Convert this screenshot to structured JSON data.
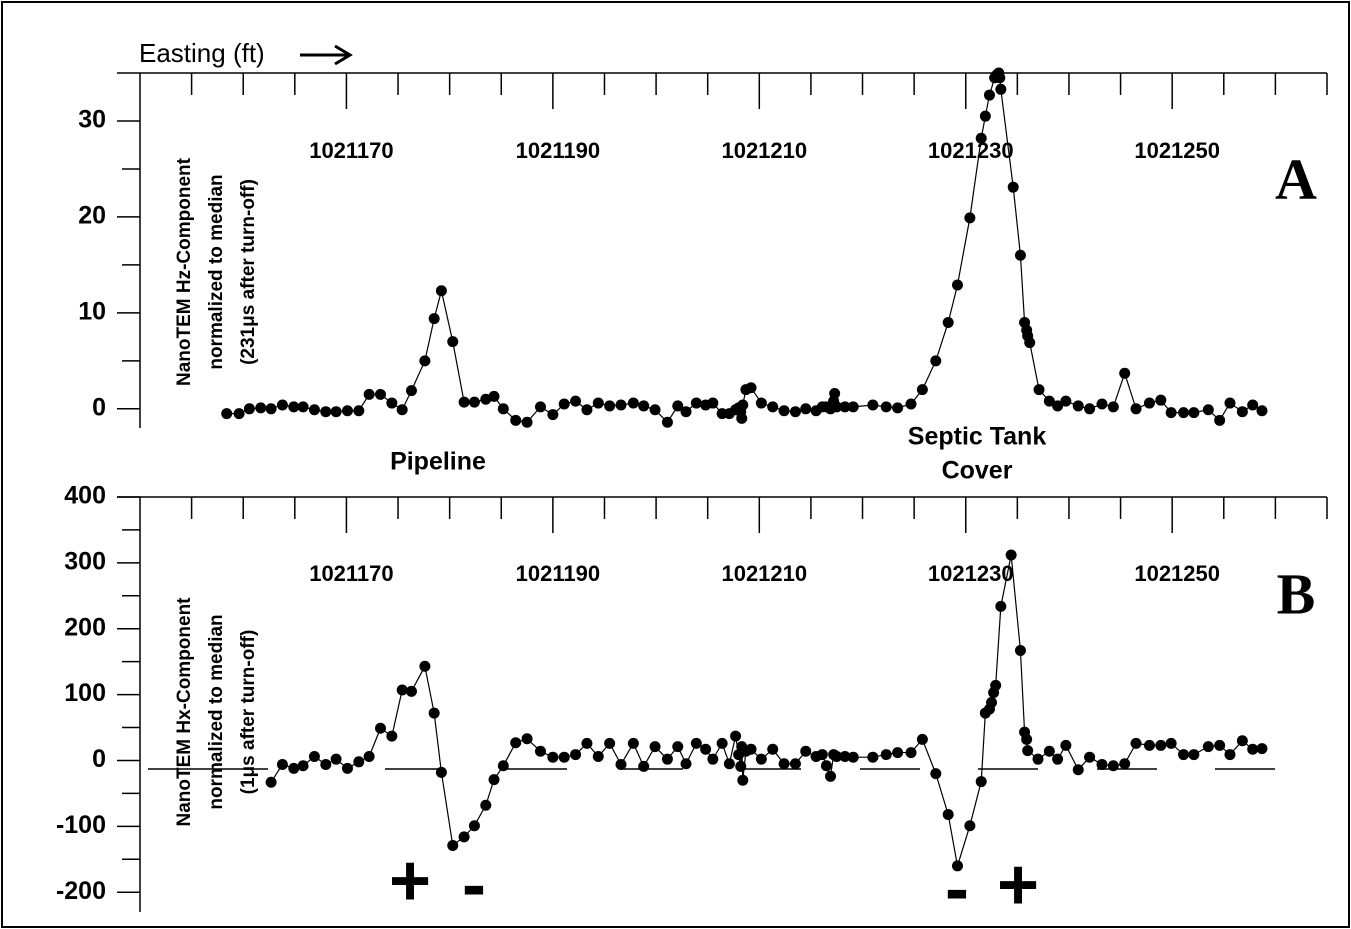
{
  "chart_data": [
    {
      "type": "line",
      "xlabel": "Easting (ft)",
      "panel_label": "A",
      "ylabel": [
        "NanoTEM Hz-Component",
        "normalized to median",
        "(231μs after turn-off)"
      ],
      "annotations": [
        "Pipeline",
        "Septic Tank",
        "Cover"
      ],
      "color": "#000000",
      "xlim": [
        1021150,
        1021265
      ],
      "xticks": [
        1021170,
        1021190,
        1021210,
        1021230,
        1021250
      ],
      "xminorticks": [
        1021155,
        1021160,
        1021165,
        1021175,
        1021180,
        1021185,
        1021195,
        1021200,
        1021205,
        1021215,
        1021220,
        1021225,
        1021235,
        1021240,
        1021245,
        1021255,
        1021260,
        1021265
      ],
      "ylim": [
        -2,
        35
      ],
      "yticks": [
        0,
        10,
        20,
        30
      ],
      "yminorticks": [
        5,
        15,
        25
      ],
      "x": [
        1021158.4,
        1021159.6,
        1021160.6,
        1021161.7,
        1021162.7,
        1021163.8,
        1021164.9,
        1021165.8,
        1021166.9,
        1021168.0,
        1021169.0,
        1021170.1,
        1021171.2,
        1021172.2,
        1021173.3,
        1021174.4,
        1021175.4,
        1021176.3,
        1021177.6,
        1021178.5,
        1021179.2,
        1021180.3,
        1021181.4,
        1021182.4,
        1021183.5,
        1021184.3,
        1021185.2,
        1021186.4,
        1021187.5,
        1021188.8,
        1021190.0,
        1021191.1,
        1021192.2,
        1021193.3,
        1021194.4,
        1021195.5,
        1021196.6,
        1021197.8,
        1021198.8,
        1021199.9,
        1021201.1,
        1021202.1,
        1021202.9,
        1021203.9,
        1021204.8,
        1021205.5,
        1021206.4,
        1021207.1,
        1021207.7,
        1021208.0,
        1021208.2,
        1021208.3,
        1021208.4,
        1021208.7,
        1021209.2,
        1021210.2,
        1021211.3,
        1021212.4,
        1021213.5,
        1021214.5,
        1021215.5,
        1021216.1,
        1021216.5,
        1021216.9,
        1021217.2,
        1021217.3,
        1021217.5,
        1021218.3,
        1021219.1,
        1021221.0,
        1021222.3,
        1021223.4,
        1021224.7,
        1021225.8,
        1021227.1,
        1021228.3,
        1021229.2,
        1021230.4,
        1021231.5,
        1021231.9,
        1021232.3,
        1021232.8,
        1021233.0,
        1021233.2,
        1021233.3,
        1021233.4,
        1021234.6,
        1021235.3,
        1021235.7,
        1021235.9,
        1021236.0,
        1021236.2,
        1021237.1,
        1021238.1,
        1021238.9,
        1021239.7,
        1021240.9,
        1021242.0,
        1021243.2,
        1021244.3,
        1021245.4,
        1021246.5,
        1021247.8,
        1021248.9,
        1021249.9,
        1021251.1,
        1021252.1,
        1021253.5,
        1021254.6,
        1021255.6,
        1021256.8,
        1021257.8,
        1021258.7
      ],
      "values": [
        -0.5,
        -0.5,
        0,
        0.1,
        0,
        0.4,
        0.2,
        0.2,
        -0.1,
        -0.3,
        -0.3,
        -0.2,
        -0.2,
        1.5,
        1.5,
        0.6,
        -0.1,
        1.9,
        5,
        9.4,
        12.3,
        7,
        0.7,
        0.7,
        1.0,
        1.3,
        0,
        -1.2,
        -1.4,
        0.2,
        -0.6,
        0.5,
        0.8,
        -0.1,
        0.6,
        0.3,
        0.4,
        0.6,
        0.3,
        -0.1,
        -1.4,
        0.3,
        -0.3,
        0.6,
        0.4,
        0.6,
        -0.5,
        -0.5,
        -0.1,
        0.1,
        -0.3,
        -1.0,
        0.4,
        2.0,
        2.2,
        0.6,
        0.2,
        -0.2,
        -0.3,
        0,
        -0.2,
        0.2,
        0.2,
        0,
        0.8,
        1.6,
        0.2,
        0.2,
        0.2,
        0.4,
        0.2,
        0.1,
        0.5,
        2,
        5,
        9,
        12.9,
        19.9,
        28.2,
        30.5,
        32.7,
        34.5,
        34.8,
        35,
        34.5,
        33.3,
        23.1,
        16,
        9,
        8.2,
        7.6,
        6.9,
        2,
        0.8,
        0.3,
        0.8,
        0.3,
        0,
        0.5,
        0.2,
        3.7,
        0,
        0.6,
        0.9,
        -0.4,
        -0.4,
        -0.4,
        -0.1,
        -1.2,
        0.6,
        -0.3,
        0.4,
        -0.2
      ]
    },
    {
      "type": "line",
      "panel_label": "B",
      "ylabel": [
        "NanoTEM Hx-Component",
        "normalized to median",
        "(1μs after turn-off)"
      ],
      "annotations": [
        "+",
        "-",
        "-",
        "+"
      ],
      "color": "#000000",
      "xlim": [
        1021150,
        1021265
      ],
      "xticks": [
        1021170,
        1021190,
        1021210,
        1021230,
        1021250
      ],
      "xminorticks": [
        1021155,
        1021160,
        1021165,
        1021175,
        1021180,
        1021185,
        1021195,
        1021200,
        1021205,
        1021215,
        1021220,
        1021225,
        1021235,
        1021240,
        1021245,
        1021255,
        1021260,
        1021265
      ],
      "ylim": [
        -230,
        400
      ],
      "yticks": [
        -200,
        -100,
        0,
        100,
        200,
        300,
        400
      ],
      "yminorticks": [
        -150,
        -50,
        50,
        150,
        250,
        350
      ],
      "x": [
        1021162.7,
        1021163.8,
        1021164.9,
        1021165.8,
        1021166.9,
        1021168.0,
        1021169.0,
        1021170.1,
        1021171.2,
        1021172.2,
        1021173.3,
        1021174.4,
        1021175.4,
        1021176.3,
        1021177.6,
        1021178.5,
        1021179.2,
        1021180.3,
        1021181.4,
        1021182.4,
        1021183.5,
        1021184.3,
        1021185.2,
        1021186.4,
        1021187.5,
        1021188.8,
        1021190.0,
        1021191.1,
        1021192.2,
        1021193.3,
        1021194.4,
        1021195.5,
        1021196.6,
        1021197.8,
        1021198.8,
        1021199.9,
        1021201.1,
        1021202.1,
        1021202.9,
        1021203.9,
        1021204.8,
        1021205.5,
        1021206.4,
        1021207.1,
        1021207.7,
        1021208.0,
        1021208.2,
        1021208.3,
        1021208.4,
        1021208.7,
        1021209.2,
        1021210.2,
        1021211.3,
        1021212.4,
        1021213.5,
        1021214.5,
        1021215.5,
        1021216.1,
        1021216.5,
        1021216.9,
        1021217.2,
        1021217.5,
        1021218.3,
        1021219.1,
        1021221.0,
        1021222.3,
        1021223.4,
        1021224.7,
        1021225.8,
        1021227.1,
        1021228.3,
        1021229.2,
        1021230.4,
        1021231.5,
        1021231.9,
        1021232.3,
        1021232.5,
        1021232.7,
        1021232.9,
        1021233.4,
        1021234.4,
        1021235.3,
        1021235.7,
        1021235.9,
        1021236.0,
        1021237.0,
        1021238.1,
        1021238.9,
        1021239.7,
        1021240.9,
        1021242.0,
        1021243.2,
        1021244.3,
        1021245.4,
        1021246.5,
        1021247.8,
        1021248.9,
        1021249.9,
        1021251.1,
        1021252.1,
        1021253.5,
        1021254.6,
        1021255.6,
        1021256.8,
        1021257.8,
        1021258.7
      ],
      "values": [
        -33,
        -6,
        -12,
        -8,
        6,
        -6,
        2,
        -12,
        -2,
        6,
        49,
        37,
        107,
        105,
        143,
        72,
        -18,
        -129,
        -116,
        -99,
        -68,
        -29,
        -8,
        27,
        33,
        14,
        5,
        5,
        9,
        26,
        6,
        26,
        -6,
        26,
        -9,
        21,
        2,
        21,
        -5,
        26,
        17,
        2,
        26,
        -5,
        37,
        9,
        -9,
        21,
        -30,
        14,
        17,
        2,
        17,
        -5,
        -5,
        14,
        6,
        9,
        -8,
        -24,
        9,
        6,
        6,
        5,
        5,
        9,
        12,
        12,
        32,
        -20,
        -82,
        -160,
        -99,
        -32,
        72,
        78,
        88,
        103,
        114,
        234,
        312,
        167,
        43,
        32,
        15,
        2,
        14,
        2,
        23,
        -14,
        5,
        -6,
        -8,
        -5,
        26,
        23,
        23,
        26,
        9,
        9,
        21,
        23,
        9,
        30,
        17,
        18
      ]
    }
  ]
}
